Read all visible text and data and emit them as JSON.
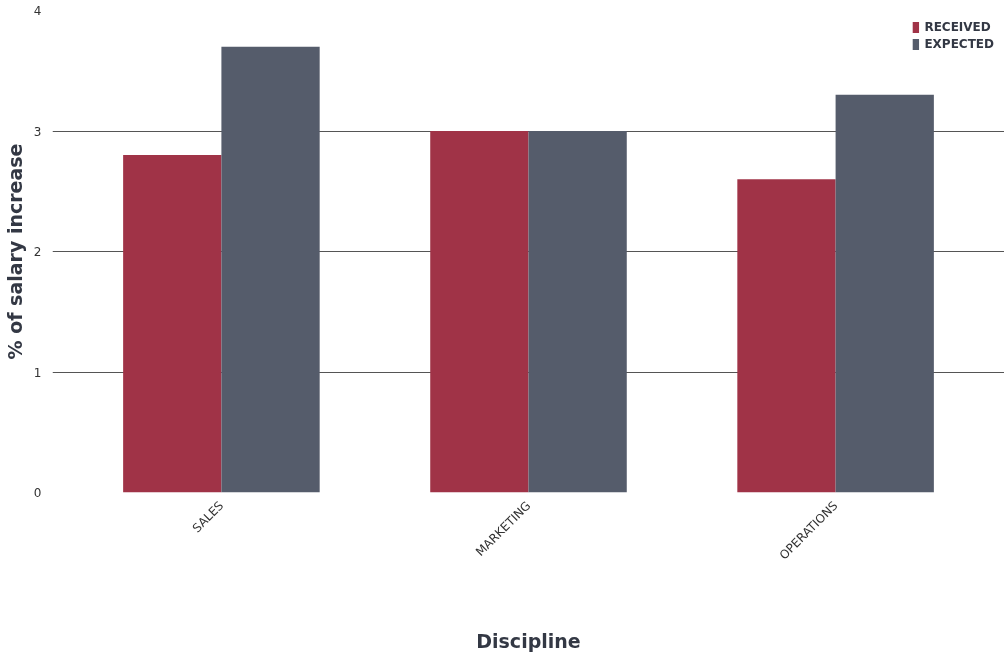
{
  "chart_data": {
    "type": "bar",
    "xlabel": "Discipline",
    "ylabel": "% of salary increase",
    "categories": [
      "SALES",
      "MARKETING",
      "OPERATIONS"
    ],
    "series": [
      {
        "name": "RECEIVED",
        "color": "#a03347",
        "values": [
          2.8,
          3.0,
          2.6
        ]
      },
      {
        "name": "EXPECTED",
        "color": "#555c6b",
        "values": [
          3.7,
          3.0,
          3.3
        ]
      }
    ],
    "ylim": [
      0,
      4
    ],
    "yticks": [
      0,
      1,
      2,
      3,
      4
    ],
    "grid": "y",
    "legend": "top right"
  }
}
